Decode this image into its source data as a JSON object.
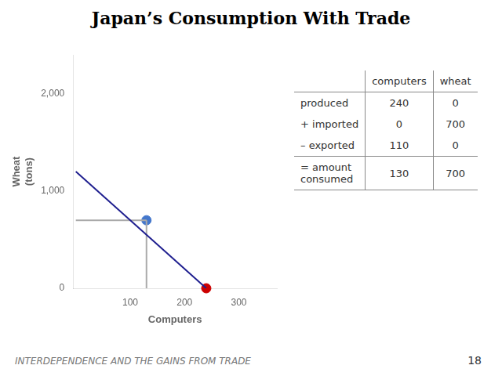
{
  "chart_data": {
    "type": "line",
    "title": "Japan’s Consumption With Trade",
    "xlabel": "Computers",
    "ylabel": "Wheat\n(tons)",
    "xlim": [
      -5,
      370
    ],
    "ylim": [
      0,
      2400
    ],
    "xticks": [
      100,
      200,
      300
    ],
    "yticks": [
      0,
      {
        "value": 1000,
        "label": "1,000"
      },
      {
        "value": 2000,
        "label": "2,000"
      }
    ],
    "grid": false,
    "series": [
      {
        "type": "line",
        "color": "#1F1F8F",
        "x": [
          0,
          240
        ],
        "values": [
          1200,
          0
        ]
      },
      {
        "type": "line",
        "color": "#AAAAAA",
        "x": [
          130,
          130
        ],
        "values": [
          0,
          700
        ]
      },
      {
        "type": "line",
        "color": "#AAAAAA",
        "x": [
          0,
          130
        ],
        "values": [
          700,
          700
        ]
      },
      {
        "type": "scatter",
        "color": "#4477CC",
        "x": [
          130
        ],
        "values": [
          700
        ]
      },
      {
        "type": "scatter",
        "color": "#CC0000",
        "x": [
          240
        ],
        "values": [
          0
        ]
      }
    ],
    "table": {
      "columns": [
        "computers",
        "wheat"
      ],
      "rows": [
        {
          "label": "produced",
          "values": [
            240,
            0
          ]
        },
        {
          "label": "+ imported",
          "values": [
            0,
            700
          ]
        },
        {
          "label": "– exported",
          "values": [
            110,
            0
          ]
        },
        {
          "label": "= amount\nconsumed",
          "values": [
            130,
            700
          ]
        }
      ]
    },
    "footer": "INTERDEPENDENCE AND THE GAINS FROM TRADE",
    "page_number": "18"
  }
}
